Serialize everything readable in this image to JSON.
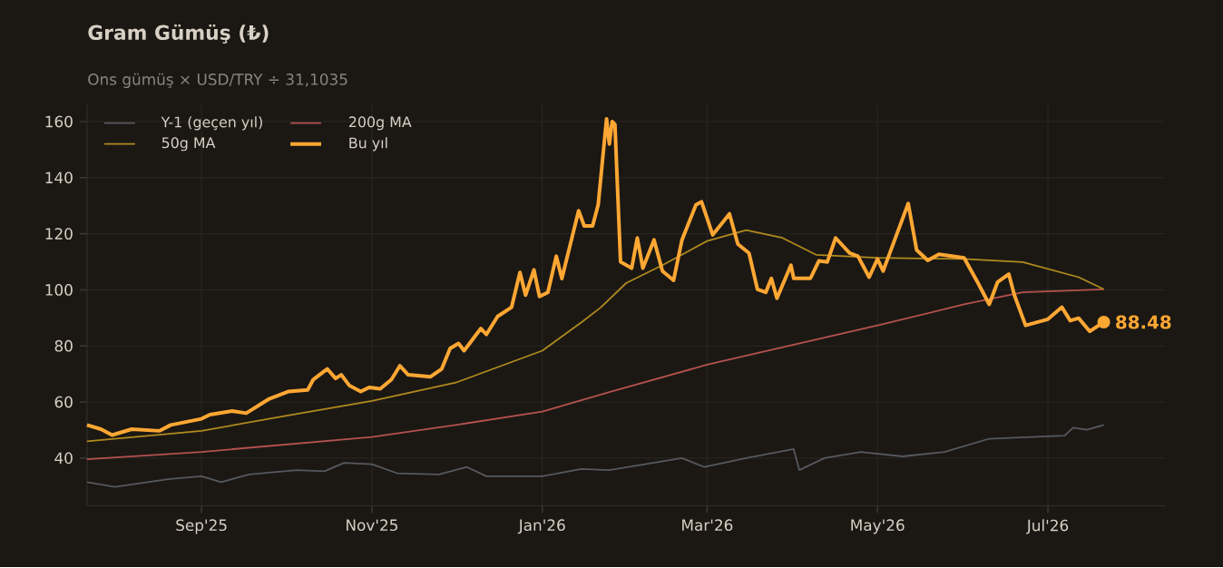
{
  "chart_data": {
    "type": "line",
    "title": "Gram Gümüş (₺)",
    "subtitle": "Ons gümüş × USD/TRY ÷ 31,1035",
    "xlim": [
      "2025-07-22",
      "2026-08-12"
    ],
    "ylim": [
      23,
      166
    ],
    "xticks": [
      {
        "value": "2025-09-01",
        "label": "Sep'25"
      },
      {
        "value": "2025-11-01",
        "label": "Nov'25"
      },
      {
        "value": "2026-01-01",
        "label": "Jan'26"
      },
      {
        "value": "2026-03-01",
        "label": "Mar'26"
      },
      {
        "value": "2026-05-01",
        "label": "May'26"
      },
      {
        "value": "2026-07-01",
        "label": "Jul'26"
      }
    ],
    "yticks": [
      40,
      60,
      80,
      100,
      120,
      140,
      160
    ],
    "grid": true,
    "legend": "top left",
    "series": [
      {
        "name": "Y-1 (geçen yıl)",
        "color": "#55595e",
        "x": [
          "2025-07-22",
          "2025-08-01",
          "2025-08-20",
          "2025-09-01",
          "2025-09-08",
          "2025-09-18",
          "2025-10-05",
          "2025-10-15",
          "2025-10-22",
          "2025-11-01",
          "2025-11-10",
          "2025-11-25",
          "2025-12-05",
          "2025-12-12",
          "2026-01-01",
          "2026-01-15",
          "2026-01-25",
          "2026-02-20",
          "2026-02-28",
          "2026-03-15",
          "2026-04-01",
          "2026-04-03",
          "2026-04-12",
          "2026-04-25",
          "2026-05-10",
          "2026-05-25",
          "2026-06-10",
          "2026-06-25",
          "2026-07-07",
          "2026-07-10",
          "2026-07-15",
          "2026-07-21"
        ],
        "values": [
          31.4,
          29.7,
          32.5,
          33.5,
          31.4,
          34.2,
          35.7,
          35.3,
          38.3,
          37.8,
          34.6,
          34.2,
          36.8,
          33.5,
          33.5,
          36.1,
          35.7,
          40,
          36.8,
          40,
          43.2,
          35.7,
          40,
          42.2,
          40.6,
          42.2,
          46.9,
          47.5,
          48,
          50.8,
          50.1,
          51.8
        ]
      },
      {
        "name": "200g MA",
        "color": "#b5524e",
        "x": [
          "2025-07-22",
          "2025-09-01",
          "2025-11-01",
          "2025-12-01",
          "2026-01-01",
          "2026-01-25",
          "2026-03-01",
          "2026-05-01",
          "2026-06-01",
          "2026-06-22",
          "2026-07-21"
        ],
        "values": [
          39.6,
          42.2,
          47.5,
          51.8,
          56.6,
          63.5,
          73.3,
          87.3,
          94.8,
          99.1,
          100.2
        ]
      },
      {
        "name": "50g MA",
        "color": "#b08a1e",
        "x": [
          "2025-07-22",
          "2025-09-01",
          "2025-10-01",
          "2025-11-01",
          "2025-12-01",
          "2026-01-01",
          "2026-01-15",
          "2026-01-22",
          "2026-01-31",
          "2026-02-13",
          "2026-03-01",
          "2026-03-15",
          "2026-03-28",
          "2026-04-09",
          "2026-05-01",
          "2026-06-01",
          "2026-06-22",
          "2026-07-12",
          "2026-07-21"
        ],
        "values": [
          46,
          49.7,
          55,
          60.4,
          66.9,
          78.3,
          88.4,
          93.8,
          102.4,
          108.8,
          117.4,
          121.3,
          118.5,
          112.5,
          111.4,
          111,
          109.9,
          104.5,
          100.2
        ]
      },
      {
        "name": "Bu yıl",
        "color": "#ffa733",
        "x": [
          "2025-07-22",
          "2025-07-27",
          "2025-07-31",
          "2025-08-07",
          "2025-08-17",
          "2025-08-21",
          "2025-09-01",
          "2025-09-04",
          "2025-09-12",
          "2025-09-17",
          "2025-09-25",
          "2025-10-02",
          "2025-10-09",
          "2025-10-11",
          "2025-10-16",
          "2025-10-19",
          "2025-10-21",
          "2025-10-24",
          "2025-10-28",
          "2025-10-31",
          "2025-11-04",
          "2025-11-08",
          "2025-11-11",
          "2025-11-14",
          "2025-11-22",
          "2025-11-26",
          "2025-11-29",
          "2025-12-02",
          "2025-12-04",
          "2025-12-10",
          "2025-12-12",
          "2025-12-16",
          "2025-12-21",
          "2025-12-24",
          "2025-12-26",
          "2025-12-29",
          "2025-12-31",
          "2026-01-03",
          "2026-01-06",
          "2026-01-08",
          "2026-01-14",
          "2026-01-16",
          "2026-01-19",
          "2026-01-21",
          "2026-01-24",
          "2026-01-25",
          "2026-01-26",
          "2026-01-27",
          "2026-01-29",
          "2026-02-02",
          "2026-02-04",
          "2026-02-06",
          "2026-02-10",
          "2026-02-13",
          "2026-02-17",
          "2026-02-20",
          "2026-02-25",
          "2026-02-27",
          "2026-03-03",
          "2026-03-09",
          "2026-03-12",
          "2026-03-16",
          "2026-03-19",
          "2026-03-22",
          "2026-03-24",
          "2026-03-26",
          "2026-03-31",
          "2026-04-01",
          "2026-04-07",
          "2026-04-10",
          "2026-04-13",
          "2026-04-16",
          "2026-04-21",
          "2026-04-24",
          "2026-04-28",
          "2026-05-01",
          "2026-05-03",
          "2026-05-07",
          "2026-05-12",
          "2026-05-15",
          "2026-05-19",
          "2026-05-23",
          "2026-06-01",
          "2026-06-06",
          "2026-06-10",
          "2026-06-13",
          "2026-06-17",
          "2026-06-19",
          "2026-06-23",
          "2026-06-27",
          "2026-07-01",
          "2026-07-06",
          "2026-07-09",
          "2026-07-12",
          "2026-07-16",
          "2026-07-21"
        ],
        "values": [
          51.8,
          50.3,
          48.2,
          50.3,
          49.7,
          51.8,
          54,
          55.5,
          56.8,
          56,
          61,
          63.7,
          64.3,
          68,
          71.8,
          68.4,
          69.7,
          65.8,
          63.7,
          65.2,
          64.7,
          68,
          72.9,
          69.7,
          69,
          71.8,
          79.1,
          80.9,
          78.3,
          86.2,
          84.1,
          90.5,
          93.8,
          106.2,
          98.1,
          107.1,
          97.6,
          99.1,
          112,
          104,
          128.2,
          122.8,
          122.8,
          130.3,
          161,
          152,
          160,
          159,
          110,
          107.7,
          118.5,
          107.7,
          117.8,
          106.7,
          103.4,
          117.8,
          130.3,
          131.4,
          119.6,
          127.1,
          116.3,
          113.1,
          100.2,
          99.1,
          104.1,
          97,
          108.8,
          104.1,
          104.1,
          110.3,
          109.9,
          118.5,
          113.1,
          112,
          104.5,
          111,
          106.7,
          117.4,
          130.8,
          114.2,
          110.5,
          112.7,
          111.4,
          102.4,
          94.8,
          102.8,
          105.6,
          98.1,
          87.3,
          88.4,
          89.5,
          93.8,
          89,
          89.9,
          85.2,
          88.48
        ]
      }
    ],
    "annotations": [
      {
        "text": "88.48",
        "x": "2026-07-21",
        "y": 88.48
      }
    ]
  }
}
